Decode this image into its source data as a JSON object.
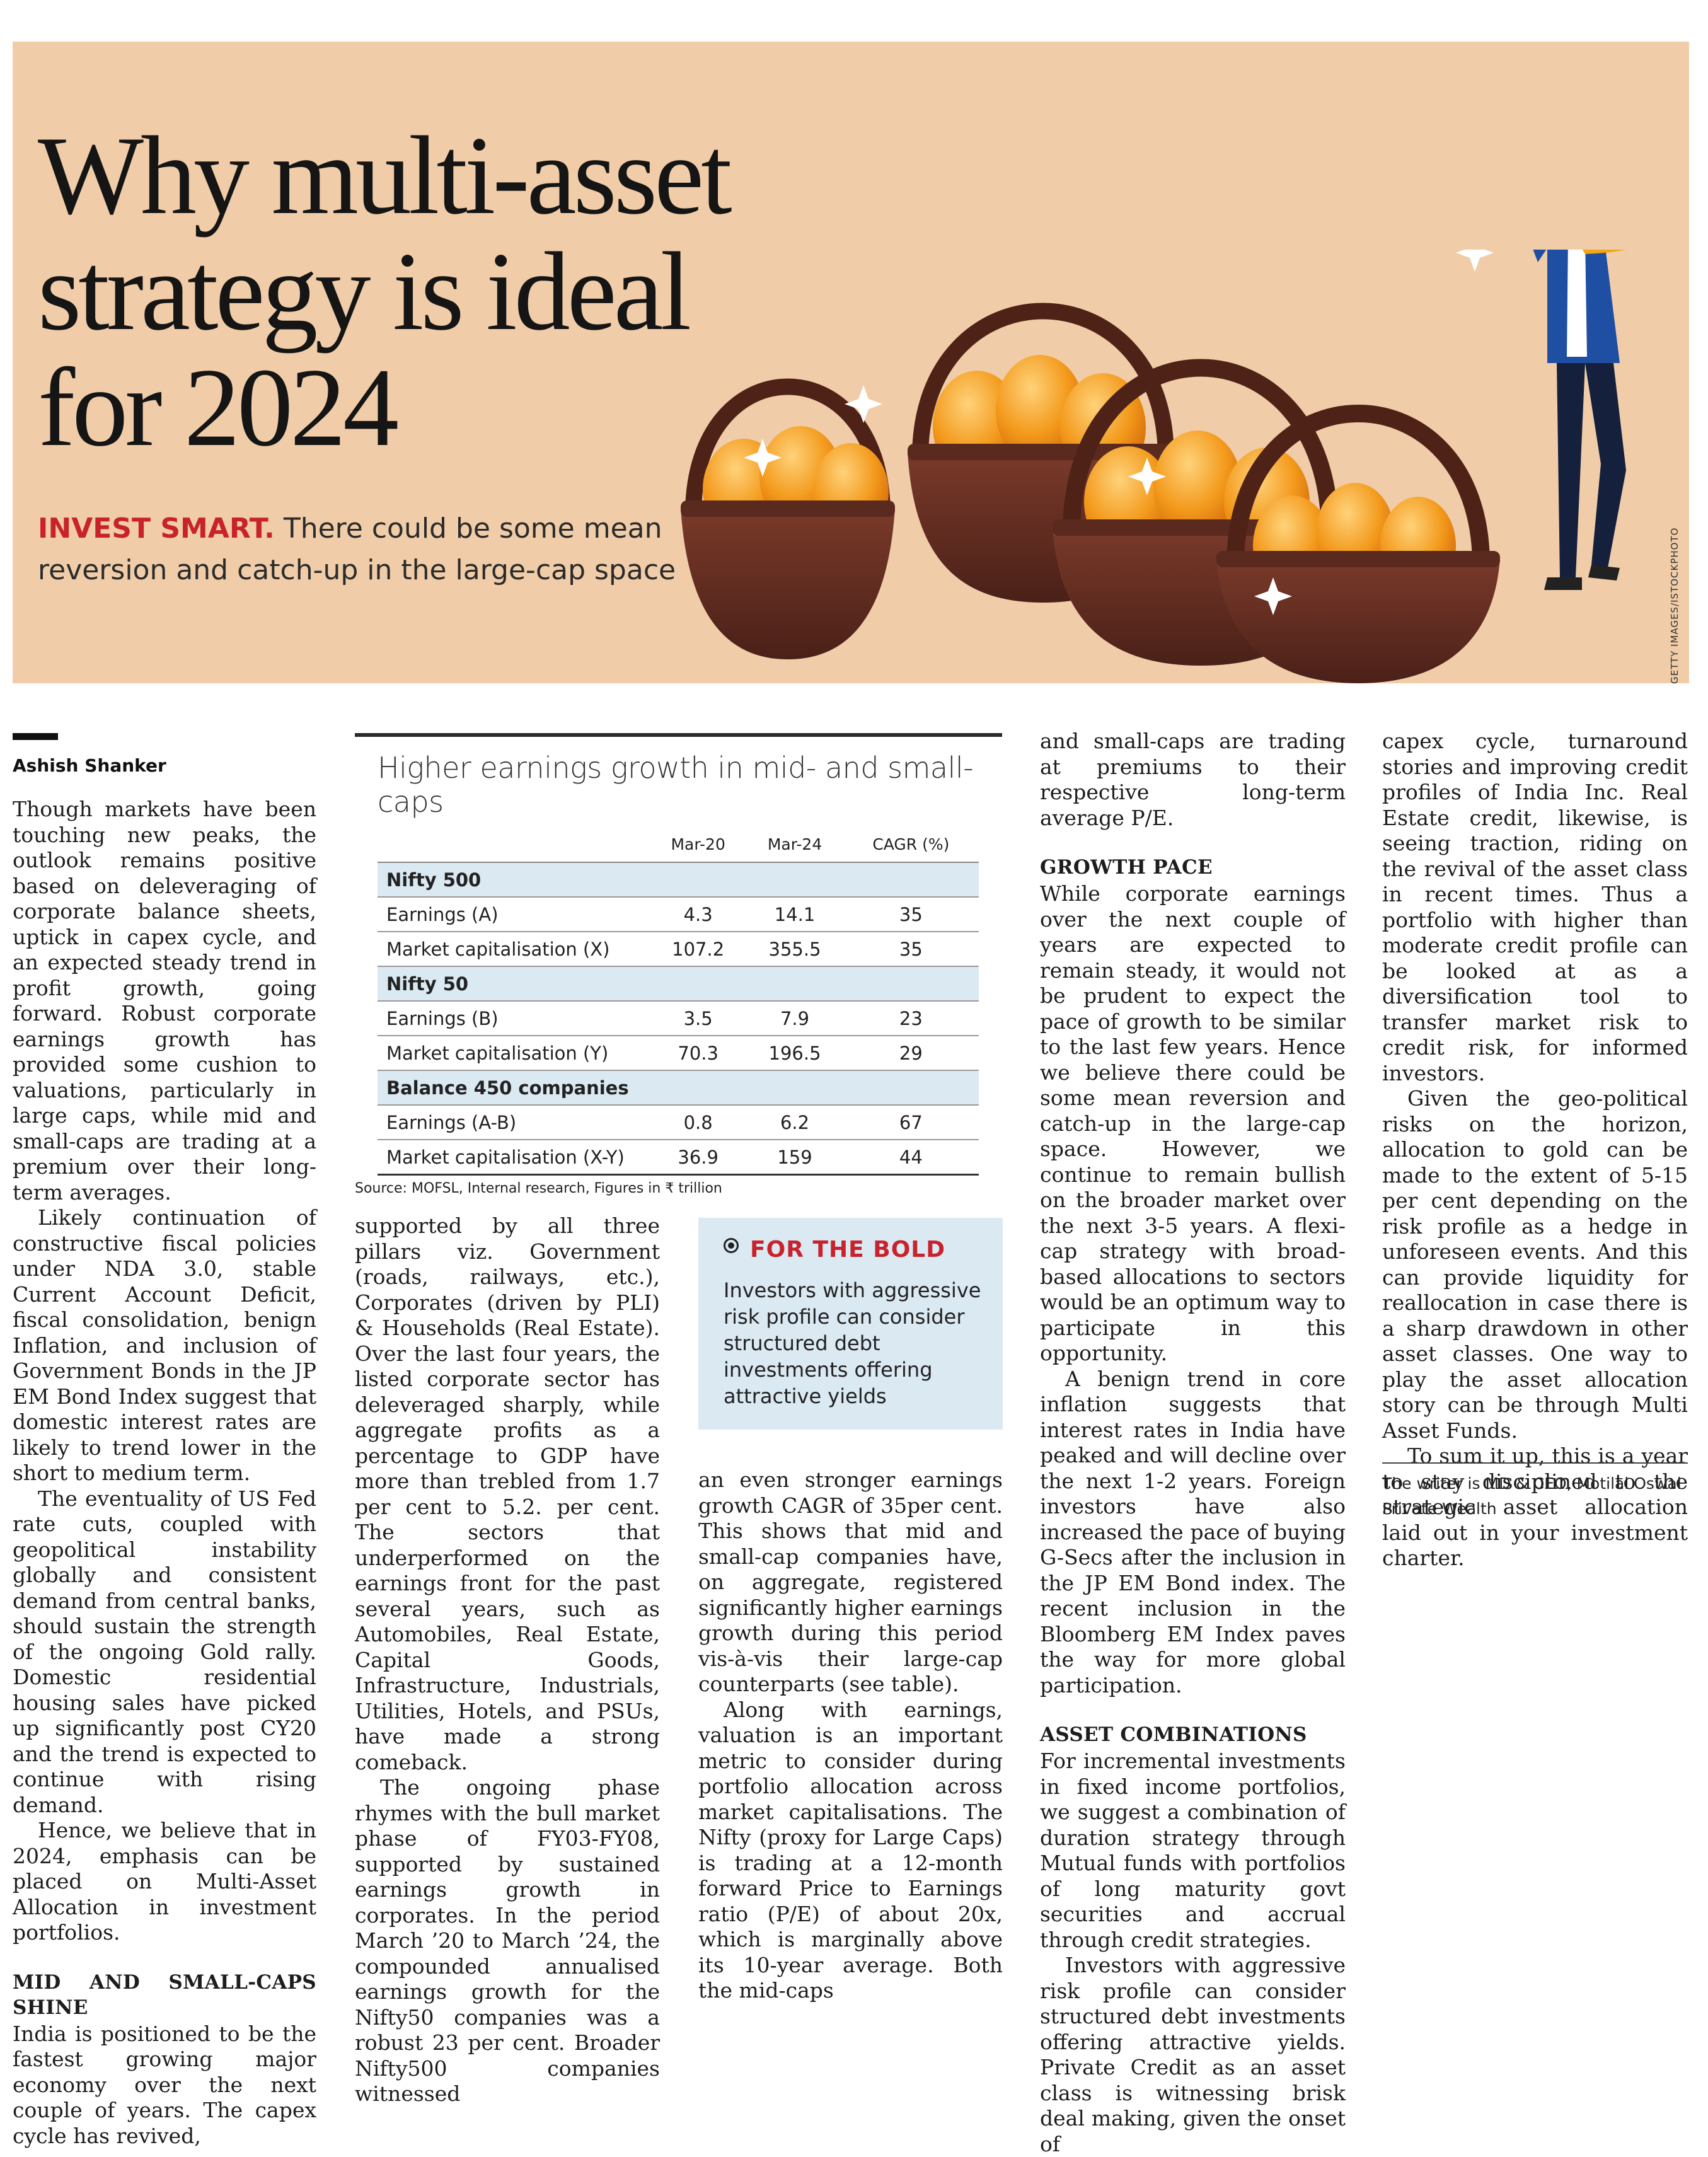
{
  "headline": {
    "line1": "Why multi-asset",
    "line2": "strategy is ideal",
    "line3": "for 2024"
  },
  "deck": {
    "kicker": "INVEST SMART.",
    "text_line1": "There could be some mean",
    "text_line2": "reversion and catch-up in the large-cap space"
  },
  "photo_credit": "GETTY IMAGES/ISTOCKPHOTO",
  "byline": "Ashish Shanker",
  "col1": {
    "p1": "Though markets have been touching new peaks, the outlook remains positive based on deleveraging of corporate balance sheets, uptick in capex cycle, and an expected steady trend in profit growth, going forward. Robust corporate earnings growth has provided some cushion to valuations, particularly in large caps, while mid and small-caps are trading at a premium over their long-term averages.",
    "p2": "Likely continuation of constructive fiscal policies under NDA 3.0, stable Current Account Deficit, fiscal consolidation, benign Inflation, and inclusion of Government Bonds in the JP EM Bond Index suggest that domestic interest rates are likely to trend lower in the short to medium term.",
    "p3": "The eventuality of US Fed rate cuts, coupled with geopolitical instability globally and consistent demand from central banks, should sustain the strength of the ongoing Gold rally. Domestic residential housing sales have picked up significantly post CY20 and the trend is expected to continue with rising demand.",
    "p4": "Hence, we believe that in 2024, emphasis can be placed on Multi-Asset Allocation in investment portfolios.",
    "h1": "MID AND SMALL-CAPS SHINE",
    "p5": "India is positioned to be the fastest growing major economy over the next couple of years. The capex cycle has revived,"
  },
  "table": {
    "title": "Higher earnings growth in mid- and small-caps",
    "columns": [
      "",
      "Mar-20",
      "Mar-24",
      "CAGR (%)"
    ],
    "groups": [
      {
        "name": "Nifty 500",
        "rows": [
          {
            "label": "Earnings (A)",
            "mar20": "4.3",
            "mar24": "14.1",
            "cagr": "35"
          },
          {
            "label": "Market capitalisation (X)",
            "mar20": "107.2",
            "mar24": "355.5",
            "cagr": "35"
          }
        ]
      },
      {
        "name": "Nifty 50",
        "rows": [
          {
            "label": "Earnings (B)",
            "mar20": "3.5",
            "mar24": "7.9",
            "cagr": "23"
          },
          {
            "label": "Market capitalisation (Y)",
            "mar20": "70.3",
            "mar24": "196.5",
            "cagr": "29"
          }
        ]
      },
      {
        "name": "Balance 450 companies",
        "rows": [
          {
            "label": "Earnings (A-B)",
            "mar20": "0.8",
            "mar24": "6.2",
            "cagr": "67"
          },
          {
            "label": "Market capitalisation (X-Y)",
            "mar20": "36.9",
            "mar24": "159",
            "cagr": "44"
          }
        ]
      }
    ],
    "source": "Source: MOFSL, Internal research, Figures in ₹ trillion"
  },
  "col2": {
    "p1": "supported by all three pillars viz. Government (roads, railways, etc.), Corporates (driven by PLI) & Households (Real Estate). Over the last four years, the listed corporate sector has deleveraged sharply, while aggregate profits as a percentage to GDP have more than trebled from 1.7 per cent to 5.2. per cent. The sectors that underperformed on the earnings front for the past several years, such as Automobiles, Real Estate, Capital Goods, Infrastructure, Industrials, Utilities, Hotels, and PSUs, have made a strong comeback.",
    "p2": "The ongoing phase rhymes with the bull market phase of FY03-FY08, supported by sustained earnings growth in corporates. In the period March ’20 to March ’24, the compounded annualised earnings growth for the Nifty50 companies was a robust 23 per cent. Broader Nifty500 companies witnessed"
  },
  "callout": {
    "title": "FOR THE BOLD",
    "body": "Investors with aggressive risk profile can consider structured debt investments offering attractive yields"
  },
  "col3": {
    "p1": "an even stronger earnings growth CAGR of 35per cent. This shows that mid and small-cap companies have, on aggregate, registered significantly higher earnings growth during this period vis-à-vis their large-cap counterparts (see table).",
    "p2": "Along with earnings, valuation is an important metric to consider during portfolio allocation across market capitalisations. The Nifty (proxy for Large Caps) is trading at a 12-month forward Price to Earnings ratio (P/E) of about 20x, which is marginally above its 10-year average. Both the mid-caps"
  },
  "col4": {
    "p1": "and small-caps are trading at premiums to their respective long-term average P/E.",
    "h1": "GROWTH PACE",
    "p2": "While corporate earnings over the next couple of years are expected to remain steady, it would not be prudent to expect the pace of growth to be similar to the last few years. Hence we believe there could be some mean reversion and catch-up in the large-cap space. However, we continue to remain bullish on the broader market over the next 3-5 years. A flexi-cap strategy with broad-based allocations to sectors would be an optimum way to participate in this opportunity.",
    "p3": "A benign trend in core inflation suggests that interest rates in India have peaked and will decline over the next 1-2 years. Foreign investors have also increased the pace of buying G-Secs after the inclusion in the JP EM Bond index. The recent inclusion in the Bloomberg EM Index paves the way for more global participation.",
    "h2": "ASSET COMBINATIONS",
    "p4": "For incremental investments in fixed income portfolios, we suggest a combination of duration strategy through Mutual funds with portfolios of long maturity govt securities and accrual through credit strategies.",
    "p5": "Investors with aggressive risk profile can consider structured debt investments offering attractive yields. Private Credit as an asset class is witnessing brisk deal making, given the onset of"
  },
  "col5": {
    "p1": "capex cycle, turnaround stories and improving credit profiles of India Inc. Real Estate credit, likewise, is seeing traction, riding on the revival of the asset class in recent times. Thus a portfolio with higher than moderate credit profile can be looked at as a diversification tool to transfer market risk to credit risk, for informed investors.",
    "p2": "Given the geo-political risks on the horizon, allocation to gold can be made to the extent of 5-15 per cent depending on the risk profile as a hedge in unforeseen events. And this can provide liquidity for reallocation in case there is a sharp drawdown in other asset classes. One way to play the asset allocation story can be through Multi Asset Funds.",
    "p3": "To sum it up, this is a year to stay disciplined to the strategic asset allocation laid out in your investment charter."
  },
  "writer_note": "The writer is MD & CEO, Motilal Oswal Private Wealth"
}
